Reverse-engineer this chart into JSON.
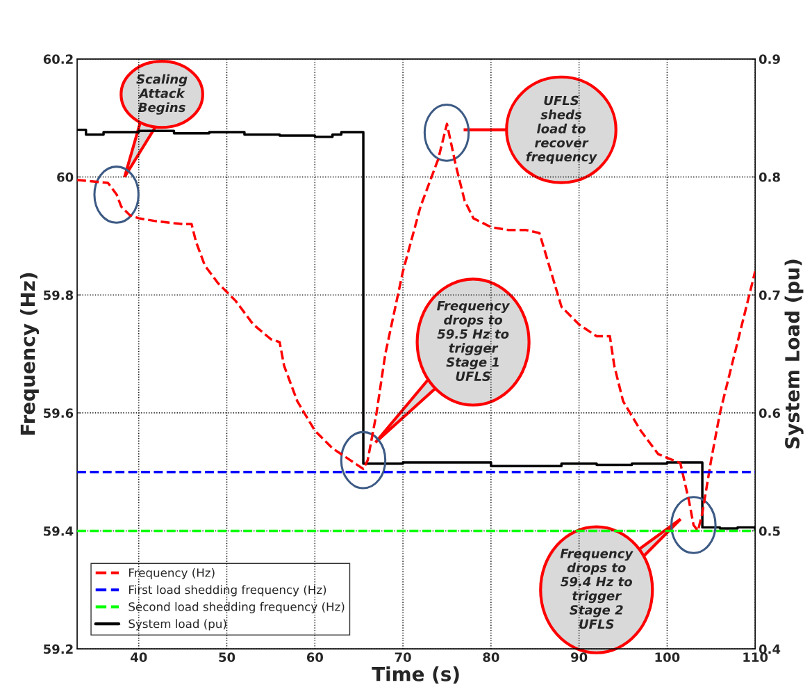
{
  "chart_data": {
    "type": "line",
    "xlabel": "Time (s)",
    "ylabel": "Frequency (Hz)",
    "y2label": "System Load (pu)",
    "xlim": [
      33,
      110
    ],
    "xticks": [
      40,
      50,
      60,
      70,
      80,
      90,
      100,
      110
    ],
    "ylim": [
      59.2,
      60.2
    ],
    "yticks": [
      59.2,
      59.4,
      59.6,
      59.8,
      {
        "value": 60,
        "label": "60"
      },
      60.2
    ],
    "y2lim": [
      0.4,
      0.9
    ],
    "y2ticks": [
      0.4,
      0.5,
      0.6,
      0.7,
      0.8,
      0.9
    ],
    "grid": true,
    "legend": "bottom left",
    "series": [
      {
        "name": "Frequency (Hz)",
        "line_style": "dashed",
        "color": "#ff0000",
        "x": [
          33,
          36.5,
          37.5,
          38,
          39,
          40,
          42,
          45,
          46,
          46.5,
          47.5,
          49,
          51,
          53,
          55,
          56,
          56.5,
          58,
          60,
          62,
          64,
          65.5,
          66,
          67,
          68,
          70,
          72,
          74,
          75,
          76,
          77,
          78,
          80,
          82,
          84,
          85.5,
          86,
          87,
          88,
          90,
          92,
          93.5,
          94,
          95,
          97,
          99,
          101.5,
          102.5,
          103,
          103.5,
          104,
          105,
          106,
          108,
          110
        ],
        "values": [
          59.995,
          59.99,
          59.97,
          59.95,
          59.935,
          59.93,
          59.925,
          59.92,
          59.92,
          59.89,
          59.85,
          59.82,
          59.79,
          59.75,
          59.725,
          59.72,
          59.68,
          59.62,
          59.57,
          59.54,
          59.52,
          59.505,
          59.52,
          59.6,
          59.7,
          59.84,
          59.95,
          60.03,
          60.09,
          60.02,
          59.96,
          59.93,
          59.915,
          59.91,
          59.91,
          59.905,
          59.88,
          59.83,
          59.78,
          59.75,
          59.73,
          59.73,
          59.68,
          59.62,
          59.57,
          59.53,
          59.515,
          59.45,
          59.41,
          59.4,
          59.43,
          59.52,
          59.6,
          59.72,
          59.84
        ]
      },
      {
        "name": "First load shedding frequency (Hz)",
        "line_style": "dashed",
        "color": "#0000ff",
        "x": [
          33,
          110
        ],
        "values": [
          59.5,
          59.5
        ]
      },
      {
        "name": "Second load shedding frequency (Hz)",
        "line_style": "dashed",
        "color": "#00ff00",
        "x": [
          33,
          110
        ],
        "values": [
          59.4,
          59.4
        ]
      },
      {
        "name": "System load (pu)",
        "type": "step",
        "line_style": "solid",
        "color": "#000000",
        "axis": "y2",
        "x": [
          33,
          34,
          36,
          40,
          44,
          48,
          52,
          56,
          60,
          62,
          63,
          65.5,
          70,
          80,
          88,
          92,
          96,
          100,
          104,
          106,
          108,
          110
        ],
        "values": [
          0.84,
          0.836,
          0.838,
          0.839,
          0.837,
          0.838,
          0.836,
          0.835,
          0.834,
          0.836,
          0.838,
          0.557,
          0.558,
          0.555,
          0.557,
          0.556,
          0.557,
          0.558,
          0.503,
          0.502,
          0.503,
          0.5
        ]
      }
    ],
    "annotations": [
      "Scaling\nAttack\nBegins",
      "UFLS\nsheds\nload to\nrecover\nfrequency",
      "Frequency\ndrops to\n59.5 Hz to\ntrigger\nStage 1\nUFLS",
      "Frequency\ndrops to\n59.4 Hz to\ntrigger\nStage 2\nUFLS"
    ]
  }
}
